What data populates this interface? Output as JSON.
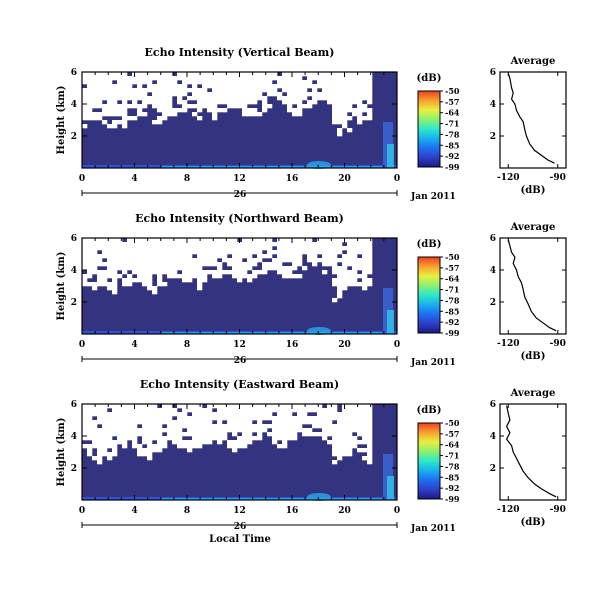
{
  "chart_data": [
    {
      "type": "heatmap",
      "title": "Echo Intensity (Vertical Beam)",
      "ylabel": "Height (km)",
      "y_ticks": [
        "6",
        "4",
        "2"
      ],
      "x_ticks": [
        "0",
        "4",
        "8",
        "12",
        "16",
        "20",
        "0"
      ],
      "date_day": "26",
      "date_month": "Jan 2011",
      "xlim": [
        0,
        24
      ],
      "ylim": [
        0,
        6
      ],
      "colorbar": {
        "label": "(dB)",
        "ticks": [
          "-50",
          "-57",
          "-64",
          "-71",
          "-78",
          "-85",
          "-92",
          "-99"
        ],
        "range": [
          -99,
          -50
        ]
      },
      "profile": {
        "title": "Average",
        "xlabel": "(dB)",
        "x_ticks": [
          "-120",
          "-90"
        ],
        "y_ticks": [
          "6",
          "4",
          "2"
        ],
        "xlim": [
          -125,
          -85
        ],
        "ylim": [
          0,
          6
        ],
        "points": [
          [
            -120,
            5.9
          ],
          [
            -119,
            5.6
          ],
          [
            -118,
            5.0
          ],
          [
            -117,
            4.7
          ],
          [
            -118,
            4.3
          ],
          [
            -116,
            4.0
          ],
          [
            -115,
            3.6
          ],
          [
            -113,
            3.2
          ],
          [
            -111,
            2.9
          ],
          [
            -110,
            2.4
          ],
          [
            -109,
            2.0
          ],
          [
            -107,
            1.5
          ],
          [
            -104,
            1.1
          ],
          [
            -100,
            0.8
          ],
          [
            -96,
            0.5
          ],
          [
            -92,
            0.3
          ]
        ]
      }
    },
    {
      "type": "heatmap",
      "title": "Echo Intensity (Northward Beam)",
      "ylabel": "Height (km)",
      "y_ticks": [
        "6",
        "4",
        "2"
      ],
      "x_ticks": [
        "0",
        "4",
        "8",
        "12",
        "16",
        "20",
        "0"
      ],
      "date_day": "26",
      "date_month": "Jan 2011",
      "xlim": [
        0,
        24
      ],
      "ylim": [
        0,
        6
      ],
      "colorbar": {
        "label": "(dB)",
        "ticks": [
          "-50",
          "-57",
          "-64",
          "-71",
          "-78",
          "-85",
          "-92",
          "-99"
        ],
        "range": [
          -99,
          -50
        ]
      },
      "profile": {
        "title": "Average",
        "xlabel": "(dB)",
        "x_ticks": [
          "-120",
          "-90"
        ],
        "y_ticks": [
          "6",
          "4",
          "2"
        ],
        "xlim": [
          -125,
          -85
        ],
        "ylim": [
          0,
          6
        ],
        "points": [
          [
            -120,
            5.9
          ],
          [
            -119,
            5.5
          ],
          [
            -118,
            5.1
          ],
          [
            -116,
            4.8
          ],
          [
            -117,
            4.4
          ],
          [
            -115,
            4.0
          ],
          [
            -114,
            3.6
          ],
          [
            -112,
            3.2
          ],
          [
            -111,
            2.8
          ],
          [
            -110,
            2.3
          ],
          [
            -108,
            1.9
          ],
          [
            -106,
            1.4
          ],
          [
            -103,
            1.0
          ],
          [
            -99,
            0.7
          ],
          [
            -95,
            0.4
          ],
          [
            -91,
            0.2
          ]
        ]
      }
    },
    {
      "type": "heatmap",
      "title": "Echo Intensity (Eastward Beam)",
      "ylabel": "Height (km)",
      "y_ticks": [
        "6",
        "4",
        "2"
      ],
      "x_ticks": [
        "0",
        "4",
        "8",
        "12",
        "16",
        "20",
        "0"
      ],
      "date_day": "26",
      "date_month": "Jan 2011",
      "xlabel": "Local Time",
      "xlim": [
        0,
        24
      ],
      "ylim": [
        0,
        6
      ],
      "colorbar": {
        "label": "(dB)",
        "ticks": [
          "-50",
          "-57",
          "-64",
          "-71",
          "-78",
          "-85",
          "-92",
          "-99"
        ],
        "range": [
          -99,
          -50
        ]
      },
      "profile": {
        "title": "Average",
        "xlabel": "(dB)",
        "x_ticks": [
          "-120",
          "-90"
        ],
        "y_ticks": [
          "6",
          "4",
          "2"
        ],
        "xlim": [
          -125,
          -85
        ],
        "ylim": [
          0,
          6
        ],
        "points": [
          [
            -121,
            5.9
          ],
          [
            -120,
            5.4
          ],
          [
            -119,
            5.0
          ],
          [
            -121,
            4.6
          ],
          [
            -119,
            4.2
          ],
          [
            -121,
            3.8
          ],
          [
            -118,
            3.4
          ],
          [
            -117,
            3.0
          ],
          [
            -115,
            2.6
          ],
          [
            -113,
            2.2
          ],
          [
            -111,
            1.8
          ],
          [
            -108,
            1.4
          ],
          [
            -104,
            1.0
          ],
          [
            -100,
            0.7
          ],
          [
            -95,
            0.4
          ],
          [
            -91,
            0.2
          ]
        ]
      }
    }
  ],
  "colors": {
    "background_blue": "#33337f",
    "empty": "#ffffff"
  },
  "colorbar_colors": [
    "#1a1a80",
    "#2f3fc8",
    "#1e70f0",
    "#18b0f0",
    "#2ee8c8",
    "#8cf070",
    "#e8f040",
    "#f8a030",
    "#f04020"
  ]
}
